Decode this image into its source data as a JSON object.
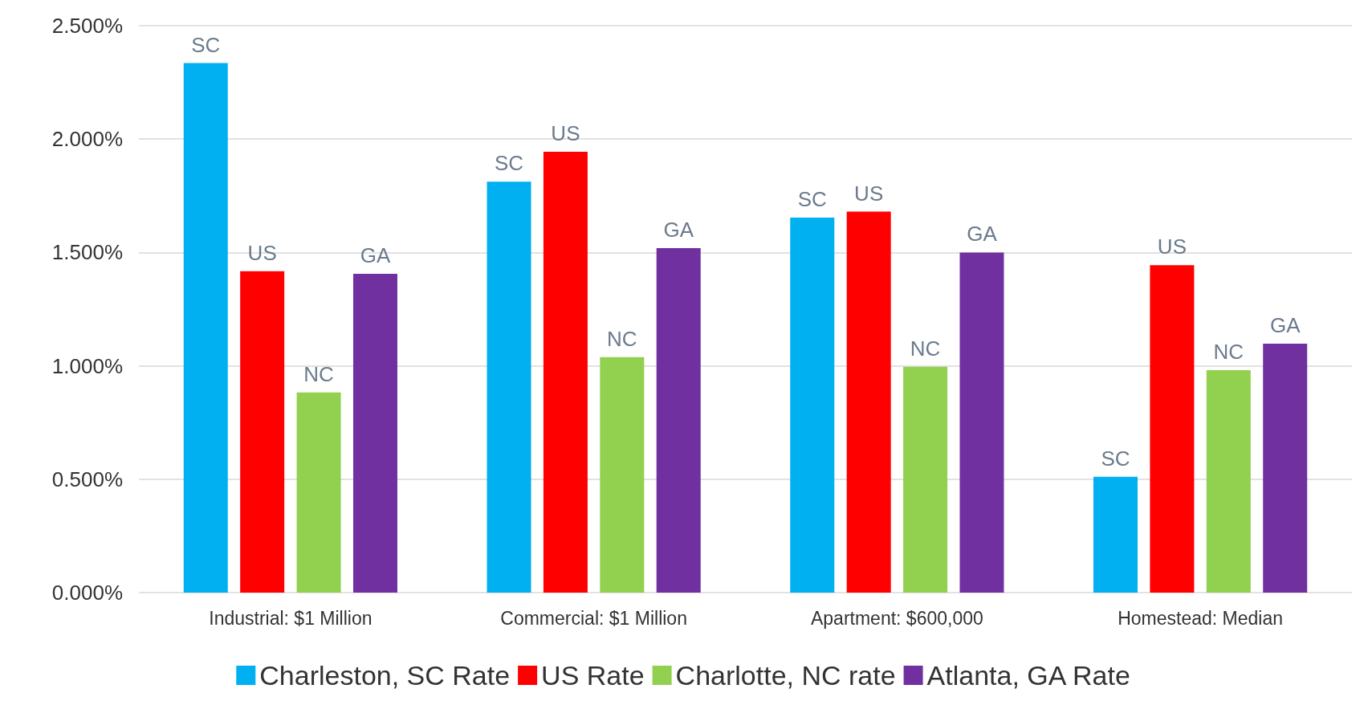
{
  "chart_data": {
    "type": "bar",
    "categories": [
      "Industrial: $1 Million",
      "Commercial: $1 Million",
      "Apartment: $600,000",
      "Homestead: Median"
    ],
    "series": [
      {
        "name": "Charleston, SC Rate",
        "color": "#00b0f0",
        "values": [
          2.335,
          1.812,
          1.654,
          0.511
        ],
        "value_labels": [
          "SC",
          "SC",
          "SC",
          "SC"
        ]
      },
      {
        "name": "US Rate",
        "color": "#ff0000",
        "values": [
          1.417,
          1.944,
          1.68,
          1.444
        ],
        "value_labels": [
          "US",
          "US",
          "US",
          "US"
        ]
      },
      {
        "name": "Charlotte, NC rate",
        "color": "#92d050",
        "values": [
          0.883,
          1.038,
          0.996,
          0.981
        ],
        "value_labels": [
          "NC",
          "NC",
          "NC",
          "NC"
        ]
      },
      {
        "name": "Atlanta, GA Rate",
        "color": "#7030a0",
        "values": [
          1.406,
          1.519,
          1.5,
          1.098
        ],
        "value_labels": [
          "GA",
          "GA",
          "GA",
          "GA"
        ]
      }
    ],
    "ylim": [
      0,
      2.5
    ],
    "yticks": [
      {
        "value": 0,
        "label": "0.000%"
      },
      {
        "value": 0.5,
        "label": "0.500%"
      },
      {
        "value": 1,
        "label": "1.000%"
      },
      {
        "value": 1.5,
        "label": "1.500%"
      },
      {
        "value": 2,
        "label": "2.000%"
      },
      {
        "value": 2.5,
        "label": "2.500%"
      }
    ],
    "grid": "y",
    "legend": "bottom"
  }
}
